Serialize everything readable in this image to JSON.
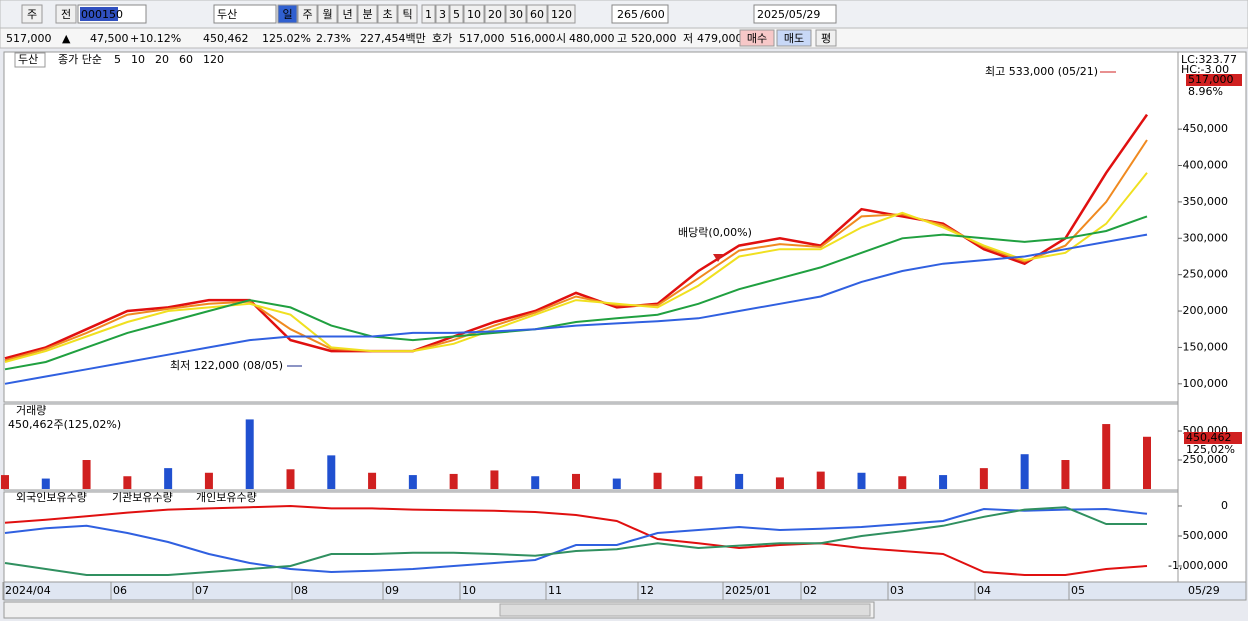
{
  "toolbar": {
    "market": "주",
    "prev": "전",
    "code": "000150",
    "name": "두산",
    "periods": [
      "일",
      "주",
      "월",
      "년",
      "분",
      "초",
      "틱"
    ],
    "counts": [
      "1",
      "3",
      "5",
      "10",
      "20",
      "30",
      "60",
      "120"
    ],
    "count": "265",
    "total": "/600",
    "date": "2025/05/29"
  },
  "quote": {
    "price": "517,000",
    "arrow": "▲",
    "change": "47,500",
    "rate": "+10.12%",
    "volume": "450,462",
    "volume_rate": "125.02%",
    "turnover": "2.73%",
    "amount": "227,454백만",
    "ask_label": "호가",
    "ask": "517,000",
    "bid": "516,000",
    "open_label": "시",
    "open": "480,000",
    "high_label": "고",
    "high": "520,000",
    "low_label": "저",
    "low": "479,000",
    "buy": "매수",
    "sell": "매도",
    "avg": "평"
  },
  "date_axis": [
    "2024/04",
    "06",
    "07",
    "08",
    "09",
    "10",
    "11",
    "12",
    "2025/01",
    "02",
    "03",
    "04",
    "05",
    "05/29"
  ],
  "chart_data": [
    {
      "type": "line",
      "stock": "두산",
      "legend_prefix": "종가 단순",
      "lc": "LC:323.77",
      "hc": "HC:-3.00",
      "last_price": "517,000",
      "last_rate": "8.96%",
      "annotations": {
        "high": "최고 533,000 (05/21)",
        "low": "최저 122,000 (08/05)",
        "dividend": "배당락(0,00%)"
      },
      "ylim": [
        75000,
        556000
      ],
      "yticks": [
        {
          "value": 100000,
          "label": "100,000"
        },
        {
          "value": 150000,
          "label": "150,000"
        },
        {
          "value": 200000,
          "label": "200,000"
        },
        {
          "value": 250000,
          "label": "250,000"
        },
        {
          "value": 300000,
          "label": "300,000"
        },
        {
          "value": 350000,
          "label": "350,000"
        },
        {
          "value": 400000,
          "label": "400,000"
        },
        {
          "value": 450000,
          "label": "450,000"
        }
      ],
      "series": [
        {
          "name": "5",
          "color": "#e01010",
          "values": [
            135000,
            150000,
            175000,
            200000,
            205000,
            215000,
            215000,
            160000,
            145000,
            145000,
            145000,
            165000,
            185000,
            200000,
            225000,
            205000,
            210000,
            255000,
            290000,
            300000,
            290000,
            340000,
            330000,
            320000,
            285000,
            265000,
            300000,
            390000,
            470000
          ]
        },
        {
          "name": "10",
          "color": "#f08a20",
          "values": [
            132000,
            148000,
            170000,
            195000,
            203000,
            210000,
            213000,
            175000,
            148000,
            145000,
            145000,
            160000,
            180000,
            198000,
            220000,
            208000,
            208000,
            245000,
            283000,
            292000,
            288000,
            330000,
            333000,
            318000,
            288000,
            268000,
            290000,
            350000,
            435000
          ]
        },
        {
          "name": "20",
          "color": "#f0e020",
          "values": [
            130000,
            145000,
            165000,
            185000,
            200000,
            205000,
            210000,
            195000,
            150000,
            145000,
            145000,
            155000,
            175000,
            195000,
            215000,
            210000,
            205000,
            235000,
            275000,
            285000,
            285000,
            315000,
            335000,
            315000,
            290000,
            270000,
            280000,
            320000,
            390000
          ]
        },
        {
          "name": "60",
          "color": "#20a040",
          "values": [
            120000,
            130000,
            150000,
            170000,
            185000,
            200000,
            215000,
            205000,
            180000,
            165000,
            160000,
            165000,
            170000,
            175000,
            185000,
            190000,
            195000,
            210000,
            230000,
            245000,
            260000,
            280000,
            300000,
            305000,
            300000,
            295000,
            300000,
            310000,
            330000
          ]
        },
        {
          "name": "120",
          "color": "#3060e0",
          "values": [
            100000,
            110000,
            120000,
            130000,
            140000,
            150000,
            160000,
            165000,
            165000,
            165000,
            170000,
            170000,
            172000,
            175000,
            180000,
            183000,
            186000,
            190000,
            200000,
            210000,
            220000,
            240000,
            255000,
            265000,
            270000,
            275000,
            285000,
            295000,
            305000
          ]
        }
      ]
    },
    {
      "type": "bar",
      "title": "거래량",
      "subtitle": "450,462주(125,02%)",
      "last_volume": "450,462",
      "last_rate": "125,02%",
      "ylim": [
        0,
        733000
      ],
      "yticks": [
        {
          "value": 250000,
          "label": "250,000"
        },
        {
          "value": 500000,
          "label": "500,000"
        }
      ],
      "values": [
        120000,
        90000,
        250000,
        110000,
        180000,
        140000,
        600000,
        170000,
        290000,
        140000,
        120000,
        130000,
        160000,
        110000,
        130000,
        90000,
        140000,
        110000,
        130000,
        100000,
        150000,
        140000,
        110000,
        120000,
        180000,
        300000,
        250000,
        560000,
        450462
      ],
      "colors": [
        "#d02020",
        "#2050d0",
        "#d02020",
        "#d02020",
        "#2050d0",
        "#d02020",
        "#2050d0",
        "#d02020",
        "#2050d0",
        "#d02020",
        "#2050d0",
        "#d02020",
        "#d02020",
        "#2050d0",
        "#d02020",
        "#2050d0",
        "#d02020",
        "#d02020",
        "#2050d0",
        "#d02020",
        "#d02020",
        "#2050d0",
        "#d02020",
        "#2050d0",
        "#d02020",
        "#2050d0",
        "#d02020",
        "#d02020",
        "#d02020"
      ]
    },
    {
      "type": "line",
      "ylim": [
        -1267000,
        233000
      ],
      "yticks": [
        0,
        {
          "value": -500000,
          "label": "-500,000"
        },
        {
          "value": -1000000,
          "label": "-1,000,000"
        }
      ],
      "series": [
        {
          "name": "외국인보유수량",
          "color": "#e01010",
          "values": [
            -280000,
            -230000,
            -170000,
            -110000,
            -60000,
            -40000,
            -20000,
            0,
            -40000,
            -40000,
            -60000,
            -70000,
            -80000,
            -100000,
            -150000,
            -250000,
            -550000,
            -620000,
            -700000,
            -650000,
            -620000,
            -700000,
            -750000,
            -800000,
            -1100000,
            -1150000,
            -1150000,
            -1050000,
            -1000000
          ]
        },
        {
          "name": "기관보유수량",
          "color": "#3060e0",
          "values": [
            -450000,
            -370000,
            -330000,
            -450000,
            -600000,
            -800000,
            -950000,
            -1050000,
            -1100000,
            -1080000,
            -1050000,
            -1000000,
            -950000,
            -900000,
            -650000,
            -650000,
            -450000,
            -400000,
            -350000,
            -400000,
            -380000,
            -350000,
            -300000,
            -250000,
            -50000,
            -80000,
            -60000,
            -50000,
            -130000
          ]
        },
        {
          "name": "개인보유수량",
          "color": "#309060",
          "values": [
            -950000,
            -1050000,
            -1150000,
            -1150000,
            -1150000,
            -1100000,
            -1050000,
            -1000000,
            -800000,
            -800000,
            -780000,
            -780000,
            -800000,
            -830000,
            -750000,
            -720000,
            -620000,
            -700000,
            -660000,
            -620000,
            -620000,
            -500000,
            -420000,
            -330000,
            -180000,
            -60000,
            -20000,
            -300000,
            -300000
          ]
        }
      ]
    }
  ]
}
